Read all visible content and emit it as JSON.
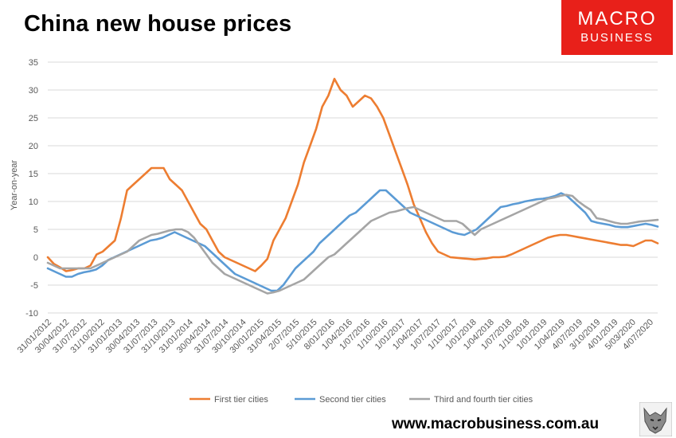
{
  "title": "China new house prices",
  "logo": {
    "line1": "MACRO",
    "line2": "BUSINESS"
  },
  "website": "www.macrobusiness.com.au",
  "colors": {
    "first": "#ed7d31",
    "second": "#5b9bd5",
    "third": "#a5a5a5",
    "logo_bg": "#e8201a"
  },
  "chart_data": {
    "type": "line",
    "title": "China new house prices",
    "ylabel": "Year-on-year",
    "xlabel": "",
    "ylim": [
      -10,
      35
    ],
    "yticks": [
      -10,
      -5,
      0,
      5,
      10,
      15,
      20,
      25,
      30,
      35
    ],
    "grid": true,
    "legend": "bottom",
    "x_tick_labels": [
      "31/01/2012",
      "30/04/2012",
      "31/07/2012",
      "31/10/2012",
      "31/01/2013",
      "30/04/2013",
      "31/07/2013",
      "31/10/2013",
      "31/01/2014",
      "30/04/2014",
      "31/07/2014",
      "30/10/2014",
      "30/01/2015",
      "31/04/2015",
      "2/07/2015",
      "5/10/2015",
      "8/01/2016",
      "1/04/2016",
      "1/07/2016",
      "1/10/2016",
      "1/01/2017",
      "1/04/2017",
      "1/07/2017",
      "1/10/2017",
      "1/01/2018",
      "1/04/2018",
      "1/07/2018",
      "1/10/2018",
      "1/01/2019",
      "1/04/2019",
      "4/07/2019",
      "3/10/2019",
      "4/01/2019",
      "5/03/2020",
      "4/07/2020"
    ],
    "series": [
      {
        "name": "First tier cities",
        "color": "#ed7d31",
        "values": [
          0,
          -1.2,
          -1.8,
          -2.5,
          -2.3,
          -2,
          -2,
          -1.5,
          0.5,
          1,
          2,
          3,
          7,
          12,
          13,
          14,
          15,
          16,
          16,
          16,
          14,
          13,
          12,
          10,
          8,
          6,
          5,
          3,
          1,
          0,
          -0.5,
          -1,
          -1.5,
          -2,
          -2.5,
          -1.5,
          -0.3,
          3,
          5,
          7,
          10,
          13,
          17,
          20,
          23,
          27,
          29,
          32,
          30,
          29,
          27,
          28,
          29,
          28.5,
          27,
          25,
          22,
          19,
          16,
          13,
          9.5,
          7,
          4.5,
          2.5,
          1,
          0.5,
          0,
          -0.1,
          -0.2,
          -0.3,
          -0.4,
          -0.3,
          -0.2,
          0,
          0,
          0.1,
          0.5,
          1,
          1.5,
          2,
          2.5,
          3,
          3.5,
          3.8,
          4,
          4,
          3.8,
          3.6,
          3.4,
          3.2,
          3,
          2.8,
          2.6,
          2.4,
          2.2,
          2.2,
          2,
          2.5,
          3,
          3,
          2.5
        ]
      },
      {
        "name": "Second tier cities",
        "color": "#5b9bd5",
        "values": [
          -2,
          -2.5,
          -3,
          -3.5,
          -3.5,
          -3,
          -2.7,
          -2.5,
          -2.2,
          -1.5,
          -0.5,
          0,
          0.5,
          1,
          1.5,
          2,
          2.5,
          3,
          3.2,
          3.5,
          4,
          4.5,
          4,
          3.5,
          3,
          2.5,
          2,
          1,
          0,
          -1,
          -2,
          -3,
          -3.5,
          -4,
          -4.5,
          -5,
          -5.5,
          -6,
          -6,
          -5,
          -3.5,
          -2,
          -1,
          0,
          1,
          2.5,
          3.5,
          4.5,
          5.5,
          6.5,
          7.5,
          8,
          9,
          10,
          11,
          12,
          12,
          11,
          10,
          9,
          8,
          7.5,
          7,
          6.5,
          6,
          5.5,
          5,
          4.5,
          4.2,
          4,
          4.5,
          5,
          6,
          7,
          8,
          9,
          9.2,
          9.5,
          9.7,
          10,
          10.2,
          10.4,
          10.5,
          10.7,
          11,
          11.5,
          11,
          10,
          9,
          8,
          6.5,
          6.2,
          6,
          5.8,
          5.5,
          5.4,
          5.4,
          5.6,
          5.8,
          6,
          5.8,
          5.5
        ]
      },
      {
        "name": "Third and fourth tier cities",
        "color": "#a5a5a5",
        "values": [
          -1,
          -1.5,
          -2,
          -2,
          -2,
          -2,
          -2,
          -2,
          -1.5,
          -1,
          -0.5,
          0,
          0.5,
          1,
          2,
          3,
          3.5,
          4,
          4.2,
          4.5,
          4.8,
          5,
          5,
          4.5,
          3.5,
          2,
          0.5,
          -1,
          -2,
          -3,
          -3.5,
          -4,
          -4.5,
          -5,
          -5.5,
          -6,
          -6.5,
          -6.3,
          -6,
          -5.5,
          -5,
          -4.5,
          -4,
          -3,
          -2,
          -1,
          0,
          0.5,
          1.5,
          2.5,
          3.5,
          4.5,
          5.5,
          6.5,
          7,
          7.5,
          8,
          8.2,
          8.5,
          8.8,
          9,
          8.5,
          8,
          7.5,
          7,
          6.5,
          6.5,
          6.5,
          6,
          5,
          4,
          5,
          5.5,
          6,
          6.5,
          7,
          7.5,
          8,
          8.5,
          9,
          9.5,
          10,
          10.5,
          10.7,
          11,
          11.2,
          11,
          10,
          9.2,
          8.5,
          7,
          6.8,
          6.5,
          6.2,
          6,
          6,
          6.2,
          6.4,
          6.5,
          6.6,
          6.7
        ]
      }
    ]
  }
}
